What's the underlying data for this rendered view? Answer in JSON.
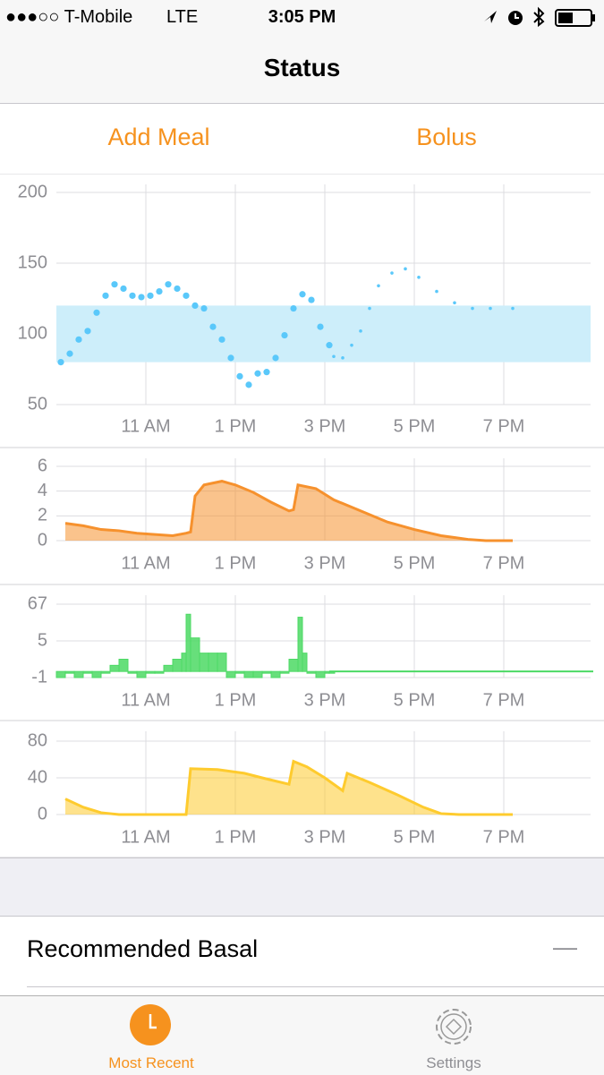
{
  "status_bar": {
    "carrier": "●●●○○ T-Mobile",
    "network": "LTE",
    "time": "3:05 PM"
  },
  "nav": {
    "title": "Status"
  },
  "actions": [
    "Add Meal",
    "Bolus"
  ],
  "chart_data": [
    {
      "type": "scatter",
      "ylim": [
        50,
        200
      ],
      "yticks": [
        50,
        100,
        150,
        200
      ],
      "xlim": [
        9,
        21
      ],
      "xticks": [
        {
          "value": 11,
          "label": "11 AM"
        },
        {
          "value": 13,
          "label": "1 PM"
        },
        {
          "value": 15,
          "label": "3 PM"
        },
        {
          "value": 17,
          "label": "5 PM"
        },
        {
          "value": 19,
          "label": "7 PM"
        }
      ],
      "grid": true,
      "target_range": [
        80,
        120
      ],
      "target_color": "#cdeefa",
      "series": [
        {
          "color": "#5ac8fa",
          "x": [
            9.1,
            9.3,
            9.5,
            9.7,
            9.9,
            10.1,
            10.3,
            10.5,
            10.7,
            10.9,
            11.1,
            11.3,
            11.5,
            11.7,
            11.9,
            12.1,
            12.3,
            12.5,
            12.7,
            12.9,
            13.1,
            13.3,
            13.5,
            13.7,
            13.9,
            14.1,
            14.3,
            14.5,
            14.7,
            14.9,
            15.1
          ],
          "values": [
            80,
            86,
            96,
            102,
            115,
            127,
            135,
            132,
            127,
            126,
            127,
            130,
            135,
            132,
            127,
            120,
            118,
            105,
            96,
            83,
            70,
            64,
            72,
            73,
            83,
            99,
            118,
            128,
            124,
            105,
            92
          ]
        },
        {
          "color": "#5ac8fa",
          "x": [
            15.2,
            15.4,
            15.6,
            15.8,
            16.0,
            16.2,
            16.5,
            16.8,
            17.1,
            17.5,
            17.9,
            18.3,
            18.7,
            19.2
          ],
          "values": [
            84,
            83,
            92,
            102,
            118,
            134,
            143,
            146,
            140,
            130,
            122,
            118,
            118,
            118
          ]
        }
      ]
    },
    {
      "type": "area",
      "ylim": [
        0,
        6
      ],
      "yticks": [
        0,
        2,
        4,
        6
      ],
      "xlim": [
        9,
        21
      ],
      "xticks": [
        {
          "value": 11,
          "label": "11 AM"
        },
        {
          "value": 13,
          "label": "1 PM"
        },
        {
          "value": 15,
          "label": "3 PM"
        },
        {
          "value": 17,
          "label": "5 PM"
        },
        {
          "value": 19,
          "label": "7 PM"
        }
      ],
      "grid": true,
      "series": [
        {
          "color": "#f6912d",
          "x": [
            9.2,
            9.6,
            10.0,
            10.4,
            10.8,
            11.2,
            11.6,
            11.9,
            12.0,
            12.1,
            12.3,
            12.7,
            13.0,
            13.4,
            13.8,
            14.2,
            14.3,
            14.4,
            14.8,
            15.2,
            15.8,
            16.4,
            17.0,
            17.6,
            18.2,
            18.6,
            19.2
          ],
          "values": [
            1.4,
            1.2,
            0.9,
            0.8,
            0.6,
            0.5,
            0.4,
            0.6,
            0.7,
            3.6,
            4.5,
            4.8,
            4.5,
            3.9,
            3.1,
            2.4,
            2.5,
            4.5,
            4.2,
            3.3,
            2.4,
            1.5,
            0.9,
            0.4,
            0.1,
            0,
            0
          ]
        }
      ]
    },
    {
      "type": "bar",
      "ylim": [
        -1,
        67
      ],
      "yticks": [
        -1,
        5,
        67
      ],
      "scale": "tick-spaced",
      "xlim": [
        9,
        21
      ],
      "xticks": [
        {
          "value": 11,
          "label": "11 AM"
        },
        {
          "value": 13,
          "label": "1 PM"
        },
        {
          "value": 15,
          "label": "3 PM"
        },
        {
          "value": 17,
          "label": "5 PM"
        },
        {
          "value": 19,
          "label": "7 PM"
        }
      ],
      "grid": true,
      "series": [
        {
          "type": "bar",
          "color": "#4cd964",
          "x": [
            9.0,
            9.2,
            9.4,
            9.6,
            9.8,
            10.0,
            10.2,
            10.4,
            10.6,
            10.8,
            11.0,
            11.2,
            11.4,
            11.6,
            11.8,
            11.9,
            12.0,
            12.2,
            12.4,
            12.6,
            12.8,
            13.0,
            13.2,
            13.4,
            13.6,
            13.8,
            14.0,
            14.2,
            14.4,
            14.5,
            14.6,
            14.8,
            15.0,
            15.1
          ],
          "values": [
            -1,
            0,
            -1,
            0,
            -1,
            0,
            1,
            2,
            0,
            -1,
            0,
            0,
            1,
            2,
            3,
            50,
            10,
            3,
            3,
            3,
            -1,
            0,
            -1,
            -1,
            0,
            -1,
            0,
            2,
            45,
            3,
            0,
            -1,
            0,
            0
          ]
        },
        {
          "type": "line",
          "color": "#4cd964",
          "x": [
            15.1,
            21
          ],
          "values": [
            0,
            0
          ]
        }
      ]
    },
    {
      "type": "area",
      "ylim": [
        0,
        80
      ],
      "yticks": [
        0,
        40,
        80
      ],
      "xlim": [
        9,
        21
      ],
      "xticks": [
        {
          "value": 11,
          "label": "11 AM"
        },
        {
          "value": 13,
          "label": "1 PM"
        },
        {
          "value": 15,
          "label": "3 PM"
        },
        {
          "value": 17,
          "label": "5 PM"
        },
        {
          "value": 19,
          "label": "7 PM"
        }
      ],
      "grid": true,
      "series": [
        {
          "color": "#fecb2e",
          "x": [
            9.2,
            9.6,
            10.0,
            10.4,
            11.0,
            11.8,
            11.9,
            12.0,
            12.6,
            13.2,
            13.6,
            14.2,
            14.3,
            14.6,
            15.0,
            15.4,
            15.5,
            16.0,
            16.6,
            17.2,
            17.6,
            18.0,
            19.2
          ],
          "values": [
            17,
            8,
            2,
            0,
            0,
            0,
            0,
            50,
            49,
            45,
            40,
            33,
            58,
            52,
            40,
            26,
            45,
            35,
            22,
            8,
            1,
            0,
            0
          ]
        }
      ]
    }
  ],
  "row": {
    "label": "Recommended Basal",
    "detail": "—"
  },
  "tabs": [
    "Most Recent",
    "Settings"
  ]
}
